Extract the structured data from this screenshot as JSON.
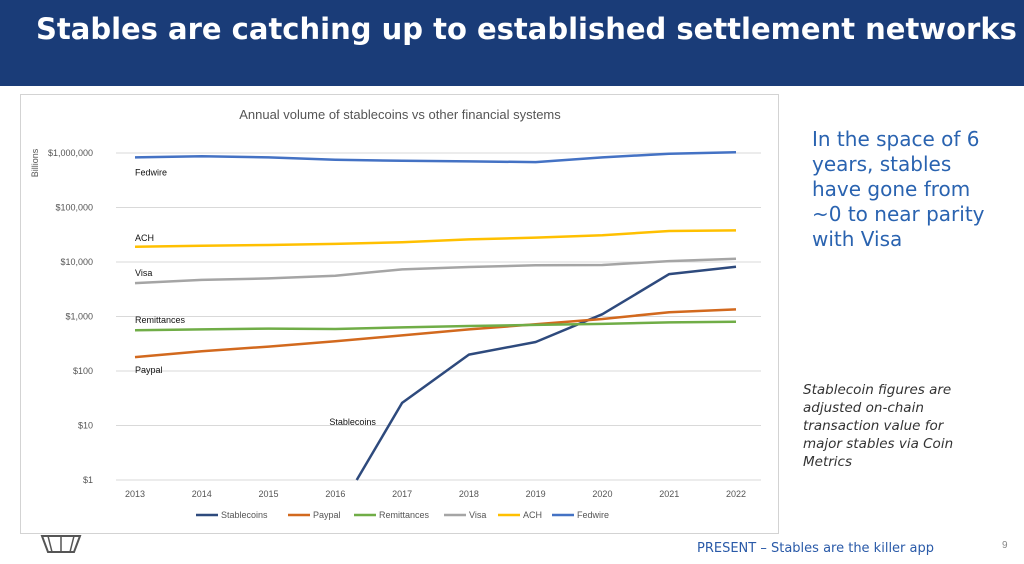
{
  "slide": {
    "title": "Stables are catching up to established settlement networks",
    "side_text": "In the space of 6 years, stables have gone from ~0 to near parity with Visa",
    "note": "Stablecoin figures are adjusted on-chain transaction value for major stables via Coin Metrics",
    "footer": "PRESENT – Stables are the killer app",
    "page_number": "9"
  },
  "colors": {
    "banner": "#1a3c78",
    "Stablecoins": "#2e4a7d",
    "Paypal": "#d2691e",
    "Remittances": "#70ad47",
    "Visa": "#a5a5a5",
    "ACH": "#ffc000",
    "Fedwire": "#4472c4"
  },
  "chart_data": {
    "type": "line",
    "title": "Annual volume of stablecoins vs other financial systems",
    "ylabel": "Billions",
    "xlabel": "",
    "y_scale": "log",
    "ylim": [
      1,
      1000000
    ],
    "x": [
      "2013",
      "2014",
      "2015",
      "2016",
      "2017",
      "2018",
      "2019",
      "2020",
      "2021",
      "2022"
    ],
    "y_ticks": [
      1,
      10,
      100,
      1000,
      10000,
      100000,
      1000000
    ],
    "y_tick_labels": [
      "$1",
      "$10",
      "$100",
      "$1,000",
      "$10,000",
      "$100,000",
      "$1,000,000"
    ],
    "grid": true,
    "legend": "bottom",
    "series": [
      {
        "name": "Stablecoins",
        "values": [
          null,
          null,
          null,
          1,
          26,
          200,
          340,
          1100,
          6000,
          8200
        ]
      },
      {
        "name": "Paypal",
        "values": [
          180,
          230,
          280,
          350,
          450,
          580,
          720,
          900,
          1200,
          1350
        ]
      },
      {
        "name": "Remittances",
        "values": [
          560,
          580,
          600,
          590,
          630,
          670,
          700,
          730,
          780,
          800
        ]
      },
      {
        "name": "Visa",
        "values": [
          4100,
          4700,
          5000,
          5600,
          7300,
          8100,
          8700,
          8800,
          10400,
          11500
        ]
      },
      {
        "name": "ACH",
        "values": [
          19000,
          19800,
          20500,
          21500,
          23000,
          26000,
          28000,
          31000,
          37000,
          38000
        ]
      },
      {
        "name": "Fedwire",
        "values": [
          830000,
          870000,
          830000,
          750000,
          720000,
          700000,
          680000,
          830000,
          970000,
          1030000
        ]
      }
    ],
    "annotations": [
      {
        "text": "Fedwire",
        "series": "Fedwire"
      },
      {
        "text": "ACH",
        "series": "ACH"
      },
      {
        "text": "Visa",
        "series": "Visa"
      },
      {
        "text": "Remittances",
        "series": "Remittances"
      },
      {
        "text": "Paypal",
        "series": "Paypal"
      },
      {
        "text": "Stablecoins",
        "series": "Stablecoins"
      }
    ]
  }
}
